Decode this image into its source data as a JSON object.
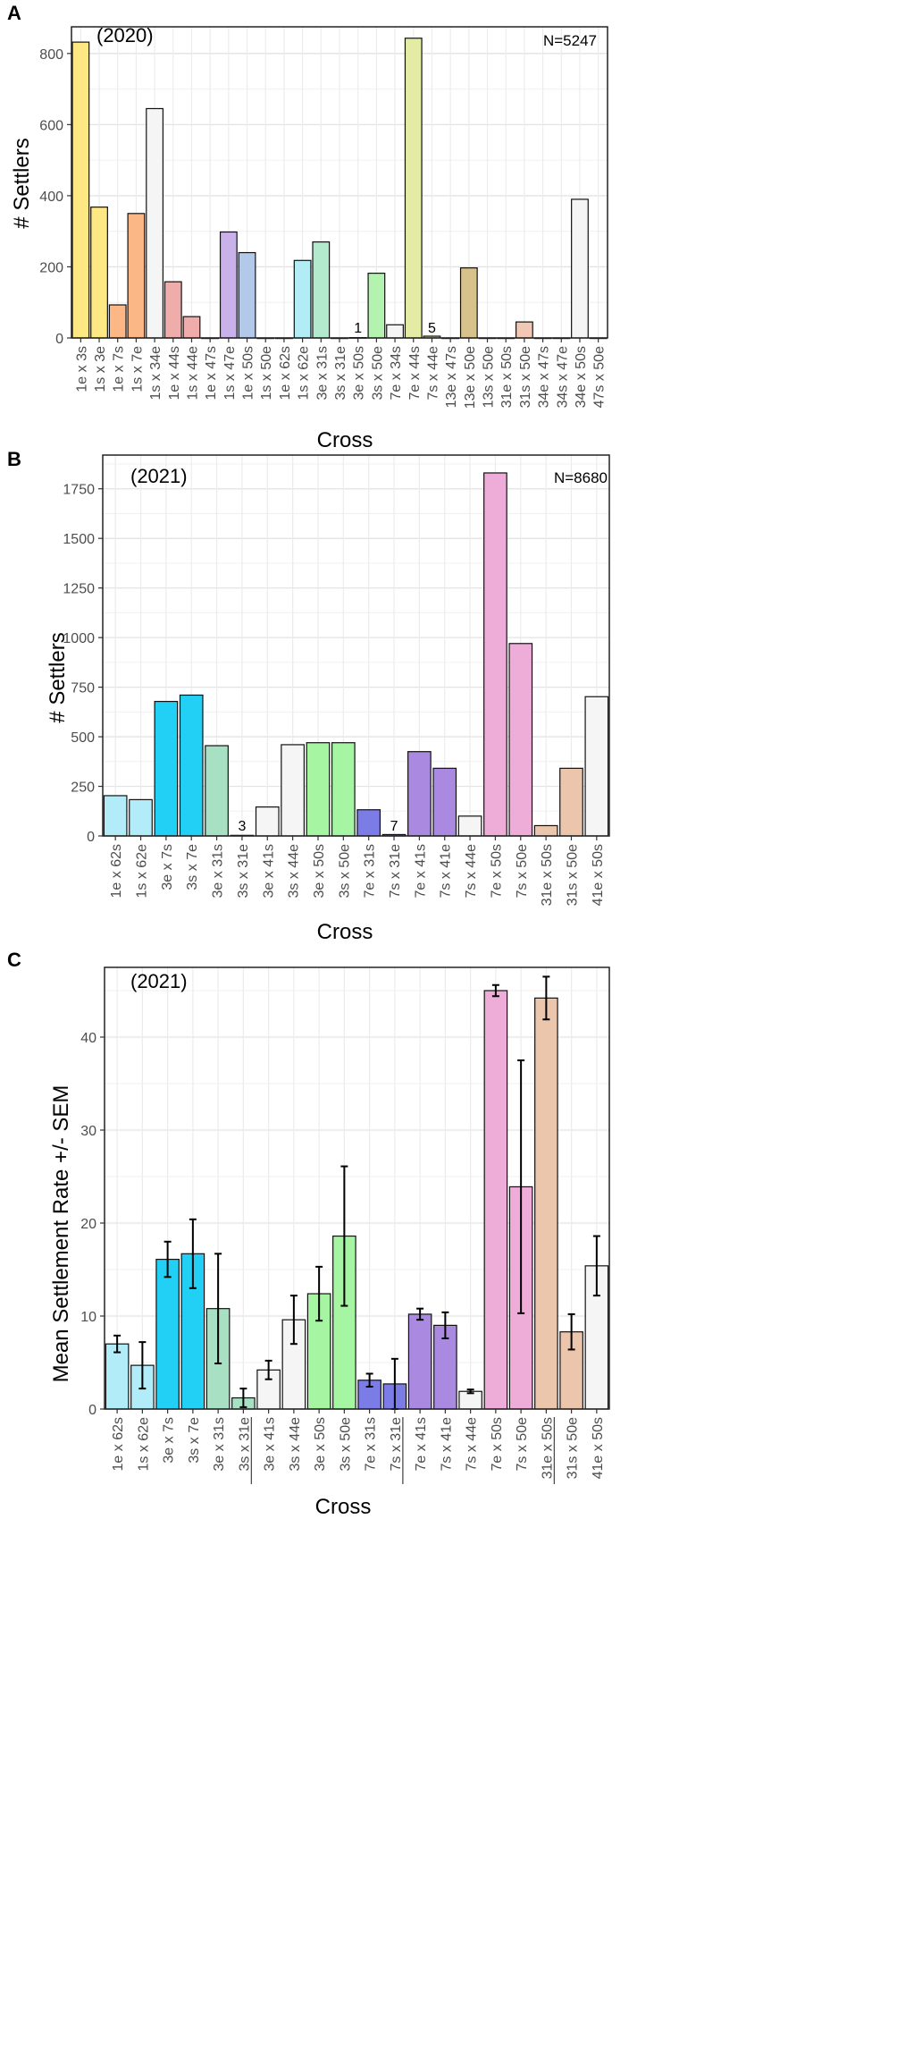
{
  "chart_data": [
    {
      "panel": "A",
      "type": "bar",
      "annotation_year": "(2020)",
      "annotation_n": "N=5247",
      "xlabel": "Cross",
      "ylabel": "# Settlers",
      "ylim": [
        0,
        875
      ],
      "yticks": [
        0,
        200,
        400,
        600,
        800
      ],
      "categories": [
        "1e x 3s",
        "1s x 3e",
        "1e x 7s",
        "1s x 7e",
        "1s x 34e",
        "1e x 44s",
        "1s x 44e",
        "1e x 47s",
        "1s x 47e",
        "1e x 50s",
        "1s x 50e",
        "1e x 62s",
        "1s x 62e",
        "3e x 31s",
        "3s x 31e",
        "3e x 50s",
        "3s x 50e",
        "7e x 34s",
        "7e x 44s",
        "7s x 44e",
        "13e x 47s",
        "13e x 50e",
        "13s x 50e",
        "31e x 50s",
        "31s x 50e",
        "34e x 47s",
        "34s x 47e",
        "34e x 50s",
        "47s x 50e"
      ],
      "values": [
        832,
        368,
        93,
        350,
        645,
        158,
        60,
        0,
        298,
        240,
        0,
        0,
        218,
        270,
        0,
        1,
        182,
        37,
        843,
        5,
        0,
        197,
        0,
        0,
        45,
        0,
        0,
        390,
        0
      ],
      "colors": [
        "#fde883",
        "#fde883",
        "#fcb787",
        "#fcb787",
        "#f5f5f5",
        "#eeadaa",
        "#eeadaa",
        "#f5f5f5",
        "#c9b1ea",
        "#b3c9ea",
        "#f5f5f5",
        "#f5f5f5",
        "#b2ecf5",
        "#b3e9cc",
        "#f5f5f5",
        "#b4f3af",
        "#b4f3af",
        "#f5f5f5",
        "#e3eba5",
        "#e3eba5",
        "#f5f5f5",
        "#d8c28c",
        "#f5f5f5",
        "#f5f5f5",
        "#f0c8b3",
        "#f5f5f5",
        "#f5f5f5",
        "#f5f5f5",
        "#f5f5f5"
      ],
      "labels": [
        {
          "index": 15,
          "text": "1"
        },
        {
          "index": 19,
          "text": "5"
        }
      ]
    },
    {
      "panel": "B",
      "type": "bar",
      "annotation_year": "(2021)",
      "annotation_n": "N=8680",
      "xlabel": "Cross",
      "ylabel": "# Settlers",
      "ylim": [
        0,
        1920
      ],
      "yticks": [
        0,
        250,
        500,
        750,
        1000,
        1250,
        1500,
        1750
      ],
      "categories": [
        "1e x 62s",
        "1s x 62e",
        "3e x 7s",
        "3s x 7e",
        "3e x 31s",
        "3s x 31e",
        "3e x 41s",
        "3s x 44e",
        "3e x 50s",
        "3s x 50e",
        "7e x 31s",
        "7s x 31e",
        "7e x 41s",
        "7s x 41e",
        "7s x 44e",
        "7e x 50s",
        "7s x 50e",
        "31e x 50s",
        "31s x 50e",
        "41e x 50s"
      ],
      "values": [
        203,
        183,
        678,
        710,
        455,
        3,
        146,
        460,
        470,
        470,
        132,
        7,
        425,
        341,
        100,
        1830,
        970,
        52,
        341,
        702
      ],
      "colors": [
        "#b2ecf8",
        "#b2ecf8",
        "#22d0f5",
        "#22d0f5",
        "#a8e0c4",
        "#f5f5f5",
        "#f5f5f5",
        "#f5f5f5",
        "#a6f5a2",
        "#a6f5a2",
        "#7b7ce6",
        "#7b7ce6",
        "#a98ae0",
        "#a98ae0",
        "#f5f5f5",
        "#eeadd8",
        "#eeadd8",
        "#ebc5ac",
        "#ebc5ac",
        "#f5f5f5"
      ],
      "labels": [
        {
          "index": 5,
          "text": "3"
        },
        {
          "index": 11,
          "text": "7"
        }
      ]
    },
    {
      "panel": "C",
      "type": "bar",
      "annotation_year": "(2021)",
      "xlabel": "Cross",
      "ylabel": "Mean Settlement Rate +/- SEM",
      "ylim": [
        0,
        47.5
      ],
      "yticks": [
        0,
        10,
        20,
        30,
        40
      ],
      "categories": [
        "1e x 62s",
        "1s x 62e",
        "3e x 7s",
        "3s x 7e",
        "3e x 31s",
        "3s x 31e",
        "3e x 41s",
        "3s x 44e",
        "3e x 50s",
        "3s x 50e",
        "7e x 31s",
        "7s x 31e",
        "7e x 41s",
        "7s x 41e",
        "7s x 44e",
        "7e x 50s",
        "7s x 50e",
        "31e x 50s",
        "31s x 50e",
        "41e x 50s"
      ],
      "values": [
        7.0,
        4.7,
        16.1,
        16.7,
        10.8,
        1.2,
        4.2,
        9.6,
        12.4,
        18.6,
        3.1,
        2.7,
        10.2,
        9.0,
        1.9,
        45.0,
        23.9,
        44.2,
        8.3,
        15.4
      ],
      "sem": [
        0.9,
        2.5,
        1.9,
        3.7,
        5.9,
        1.0,
        1.0,
        2.6,
        2.9,
        7.5,
        0.7,
        2.7,
        0.6,
        1.4,
        0.2,
        0.6,
        13.6,
        2.3,
        1.9,
        3.2
      ],
      "colors": [
        "#b2ecf8",
        "#b2ecf8",
        "#22d0f5",
        "#22d0f5",
        "#a8e0c4",
        "#a8e0c4",
        "#f5f5f5",
        "#f5f5f5",
        "#a6f5a2",
        "#a6f5a2",
        "#7b7ce6",
        "#7b7ce6",
        "#a98ae0",
        "#a98ae0",
        "#f5f5f5",
        "#eeadd8",
        "#eeadd8",
        "#ebc5ac",
        "#ebc5ac",
        "#f5f5f5"
      ],
      "underlined": [
        5,
        11,
        17
      ]
    }
  ]
}
